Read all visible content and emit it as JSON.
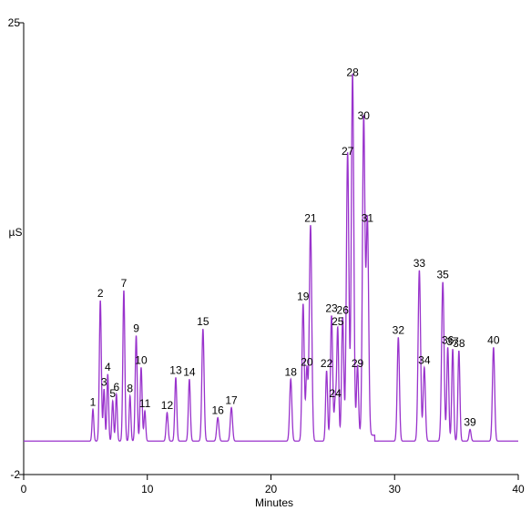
{
  "chart_data": {
    "type": "line",
    "title": "",
    "xlabel": "Minutes",
    "ylabel": "µS",
    "xlim": [
      0,
      40
    ],
    "ylim": [
      -2,
      25
    ],
    "x_ticks": [
      0,
      10,
      20,
      30,
      40
    ],
    "y_ticks": [
      -2,
      25
    ],
    "grid": false,
    "line_color": "#9933cc",
    "baseline": 0.0,
    "series": [
      {
        "peaks": [
          {
            "label": "1",
            "x": 5.6,
            "y": 1.9,
            "w": 0.07
          },
          {
            "label": "2",
            "x": 6.2,
            "y": 8.4,
            "w": 0.08
          },
          {
            "label": "3",
            "x": 6.5,
            "y": 3.1,
            "w": 0.07
          },
          {
            "label": "4",
            "x": 6.8,
            "y": 4.0,
            "w": 0.07
          },
          {
            "label": "5",
            "x": 7.2,
            "y": 2.4,
            "w": 0.07
          },
          {
            "label": "6",
            "x": 7.5,
            "y": 2.8,
            "w": 0.07
          },
          {
            "label": "7",
            "x": 8.1,
            "y": 9.0,
            "w": 0.08
          },
          {
            "label": "8",
            "x": 8.6,
            "y": 2.7,
            "w": 0.07
          },
          {
            "label": "9",
            "x": 9.1,
            "y": 6.3,
            "w": 0.08
          },
          {
            "label": "10",
            "x": 9.5,
            "y": 4.4,
            "w": 0.08
          },
          {
            "label": "11",
            "x": 9.8,
            "y": 1.8,
            "w": 0.07
          },
          {
            "label": "12",
            "x": 11.6,
            "y": 1.7,
            "w": 0.08
          },
          {
            "label": "13",
            "x": 12.3,
            "y": 3.8,
            "w": 0.08
          },
          {
            "label": "14",
            "x": 13.4,
            "y": 3.7,
            "w": 0.08
          },
          {
            "label": "15",
            "x": 14.5,
            "y": 6.7,
            "w": 0.09
          },
          {
            "label": "16",
            "x": 15.7,
            "y": 1.4,
            "w": 0.09
          },
          {
            "label": "17",
            "x": 16.8,
            "y": 2.0,
            "w": 0.09
          },
          {
            "label": "18",
            "x": 21.6,
            "y": 3.7,
            "w": 0.09
          },
          {
            "label": "19",
            "x": 22.6,
            "y": 8.2,
            "w": 0.09
          },
          {
            "label": "20",
            "x": 22.9,
            "y": 4.3,
            "w": 0.08
          },
          {
            "label": "21",
            "x": 23.2,
            "y": 12.9,
            "w": 0.1
          },
          {
            "label": "22",
            "x": 24.5,
            "y": 4.2,
            "w": 0.08
          },
          {
            "label": "23",
            "x": 24.9,
            "y": 7.5,
            "w": 0.09
          },
          {
            "label": "24",
            "x": 25.2,
            "y": 2.4,
            "w": 0.08
          },
          {
            "label": "25",
            "x": 25.4,
            "y": 6.7,
            "w": 0.08
          },
          {
            "label": "26",
            "x": 25.8,
            "y": 7.4,
            "w": 0.09
          },
          {
            "label": "27",
            "x": 26.2,
            "y": 16.9,
            "w": 0.1
          },
          {
            "label": "28",
            "x": 26.6,
            "y": 21.6,
            "w": 0.1
          },
          {
            "label": "29",
            "x": 27.0,
            "y": 4.2,
            "w": 0.08
          },
          {
            "label": "30",
            "x": 27.5,
            "y": 19.0,
            "w": 0.1
          },
          {
            "label": "31",
            "x": 27.8,
            "y": 12.9,
            "w": 0.1
          },
          {
            "label": "32",
            "x": 30.3,
            "y": 6.2,
            "w": 0.09
          },
          {
            "label": "33",
            "x": 32.0,
            "y": 10.2,
            "w": 0.1
          },
          {
            "label": "34",
            "x": 32.4,
            "y": 4.4,
            "w": 0.09
          },
          {
            "label": "35",
            "x": 33.9,
            "y": 9.5,
            "w": 0.1
          },
          {
            "label": "36",
            "x": 34.3,
            "y": 5.6,
            "w": 0.08
          },
          {
            "label": "37",
            "x": 34.7,
            "y": 5.5,
            "w": 0.08
          },
          {
            "label": "38",
            "x": 35.2,
            "y": 5.4,
            "w": 0.08
          },
          {
            "label": "39",
            "x": 36.1,
            "y": 0.7,
            "w": 0.08
          },
          {
            "label": "40",
            "x": 38.0,
            "y": 5.6,
            "w": 0.09
          }
        ]
      }
    ]
  }
}
